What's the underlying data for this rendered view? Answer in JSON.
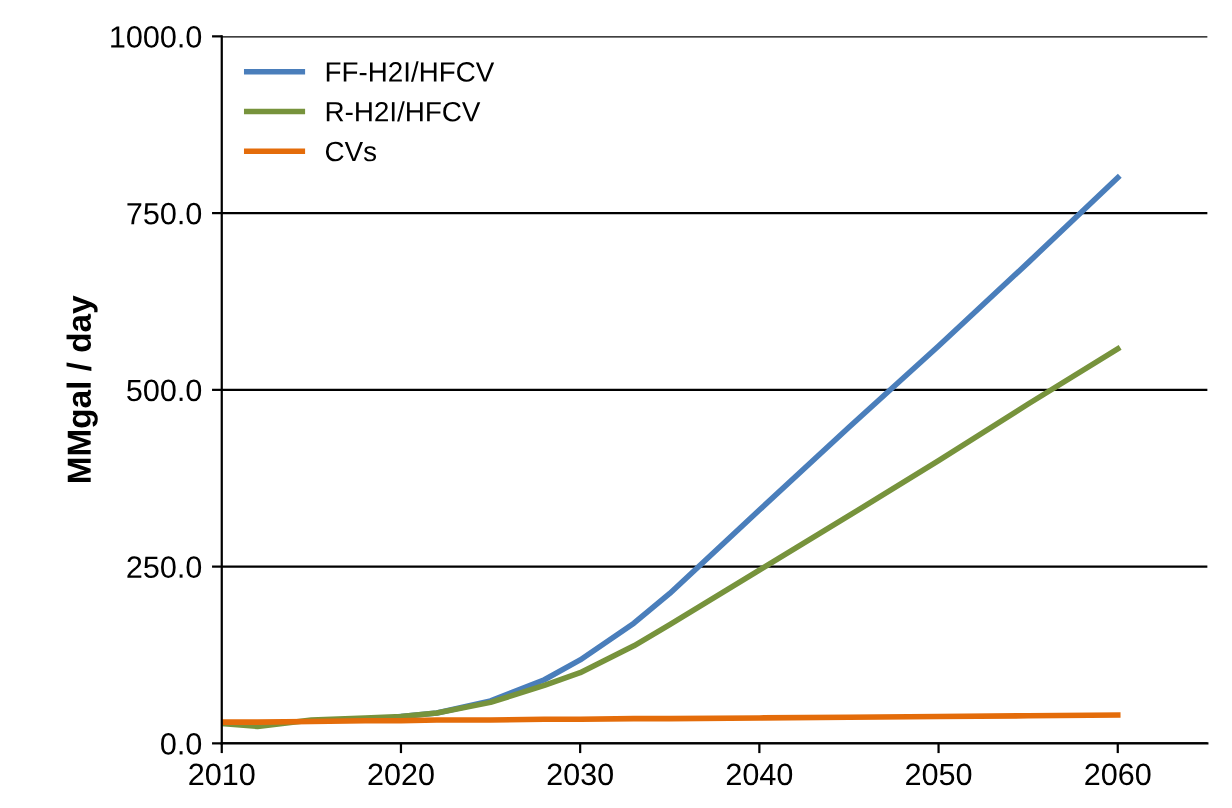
{
  "chart_data": {
    "type": "line",
    "ylabel": "MMgal / day",
    "x": [
      2010,
      2012,
      2015,
      2018,
      2020,
      2022,
      2025,
      2028,
      2030,
      2033,
      2035,
      2040,
      2045,
      2050,
      2055,
      2060
    ],
    "series": [
      {
        "name": "FF-H2I/HFCV",
        "color": "#4a7ebb",
        "values": [
          null,
          null,
          null,
          null,
          38,
          43,
          60,
          90,
          118,
          170,
          212,
          330,
          447,
          562,
          680,
          800
        ]
      },
      {
        "name": "R-H2I/HFCV",
        "color": "#77933c",
        "values": [
          28,
          24,
          33,
          36,
          38,
          43,
          58,
          82,
          100,
          138,
          168,
          245,
          322,
          400,
          480,
          558
        ]
      },
      {
        "name": "CVs",
        "color": "#e46c0a",
        "values": [
          30,
          30,
          31,
          32,
          32,
          33,
          33,
          34,
          34,
          35,
          35,
          36,
          37,
          38,
          39,
          40
        ]
      }
    ],
    "xlim": [
      2010,
      2065
    ],
    "xticks": [
      2010,
      2020,
      2030,
      2040,
      2050,
      2060
    ],
    "ylim": [
      0,
      1000
    ],
    "yticks": [
      {
        "value": 0,
        "label": "0.0"
      },
      {
        "value": 250,
        "label": "250.0"
      },
      {
        "value": 500,
        "label": "500.0"
      },
      {
        "value": 750,
        "label": "750.0"
      },
      {
        "value": 1000,
        "label": "1000.0"
      }
    ],
    "grid": "y",
    "legend": "top left",
    "marker": "none",
    "line_style": "solid"
  }
}
